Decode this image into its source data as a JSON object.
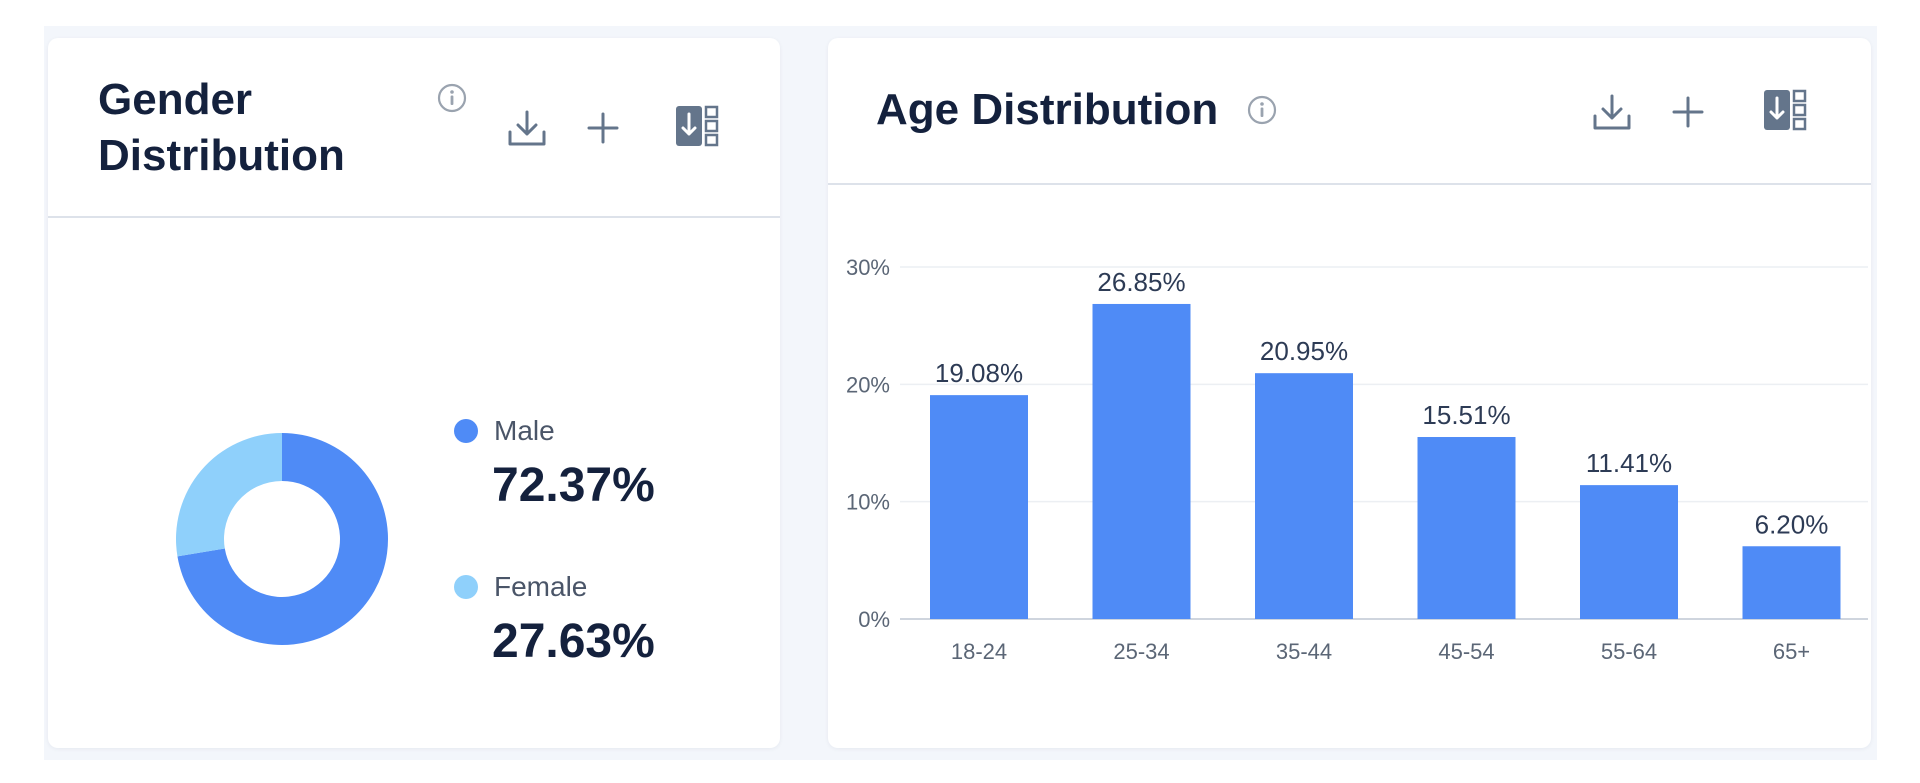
{
  "gender_card": {
    "title": "Gender Distribution",
    "legend": [
      {
        "label": "Male",
        "value": "72.37%",
        "color": "#4f8bf6"
      },
      {
        "label": "Female",
        "value": "27.63%",
        "color": "#8fd0fb"
      }
    ]
  },
  "age_card": {
    "title": "Age Distribution"
  },
  "icons": {
    "info": "info-icon",
    "download": "download-icon",
    "add": "plus-icon",
    "export": "excel-export-icon"
  },
  "chart_data": [
    {
      "type": "pie",
      "style": "donut",
      "categories": [
        "Male",
        "Female"
      ],
      "values": [
        72.37,
        27.63
      ],
      "colors": [
        "#4f8bf6",
        "#8fd0fb"
      ],
      "title": "Gender Distribution"
    },
    {
      "type": "bar",
      "title": "Age Distribution",
      "categories": [
        "18-24",
        "25-34",
        "35-44",
        "45-54",
        "55-64",
        "65+"
      ],
      "values": [
        19.08,
        26.85,
        20.95,
        15.51,
        11.41,
        6.2
      ],
      "data_labels": [
        "19.08%",
        "26.85%",
        "20.95%",
        "15.51%",
        "11.41%",
        "6.20%"
      ],
      "ylim": [
        0,
        30
      ],
      "yticks": [
        0,
        10,
        20,
        30
      ],
      "ytick_labels": [
        "0%",
        "10%",
        "20%",
        "30%"
      ],
      "grid": true,
      "color": "#4f8bf6"
    }
  ]
}
